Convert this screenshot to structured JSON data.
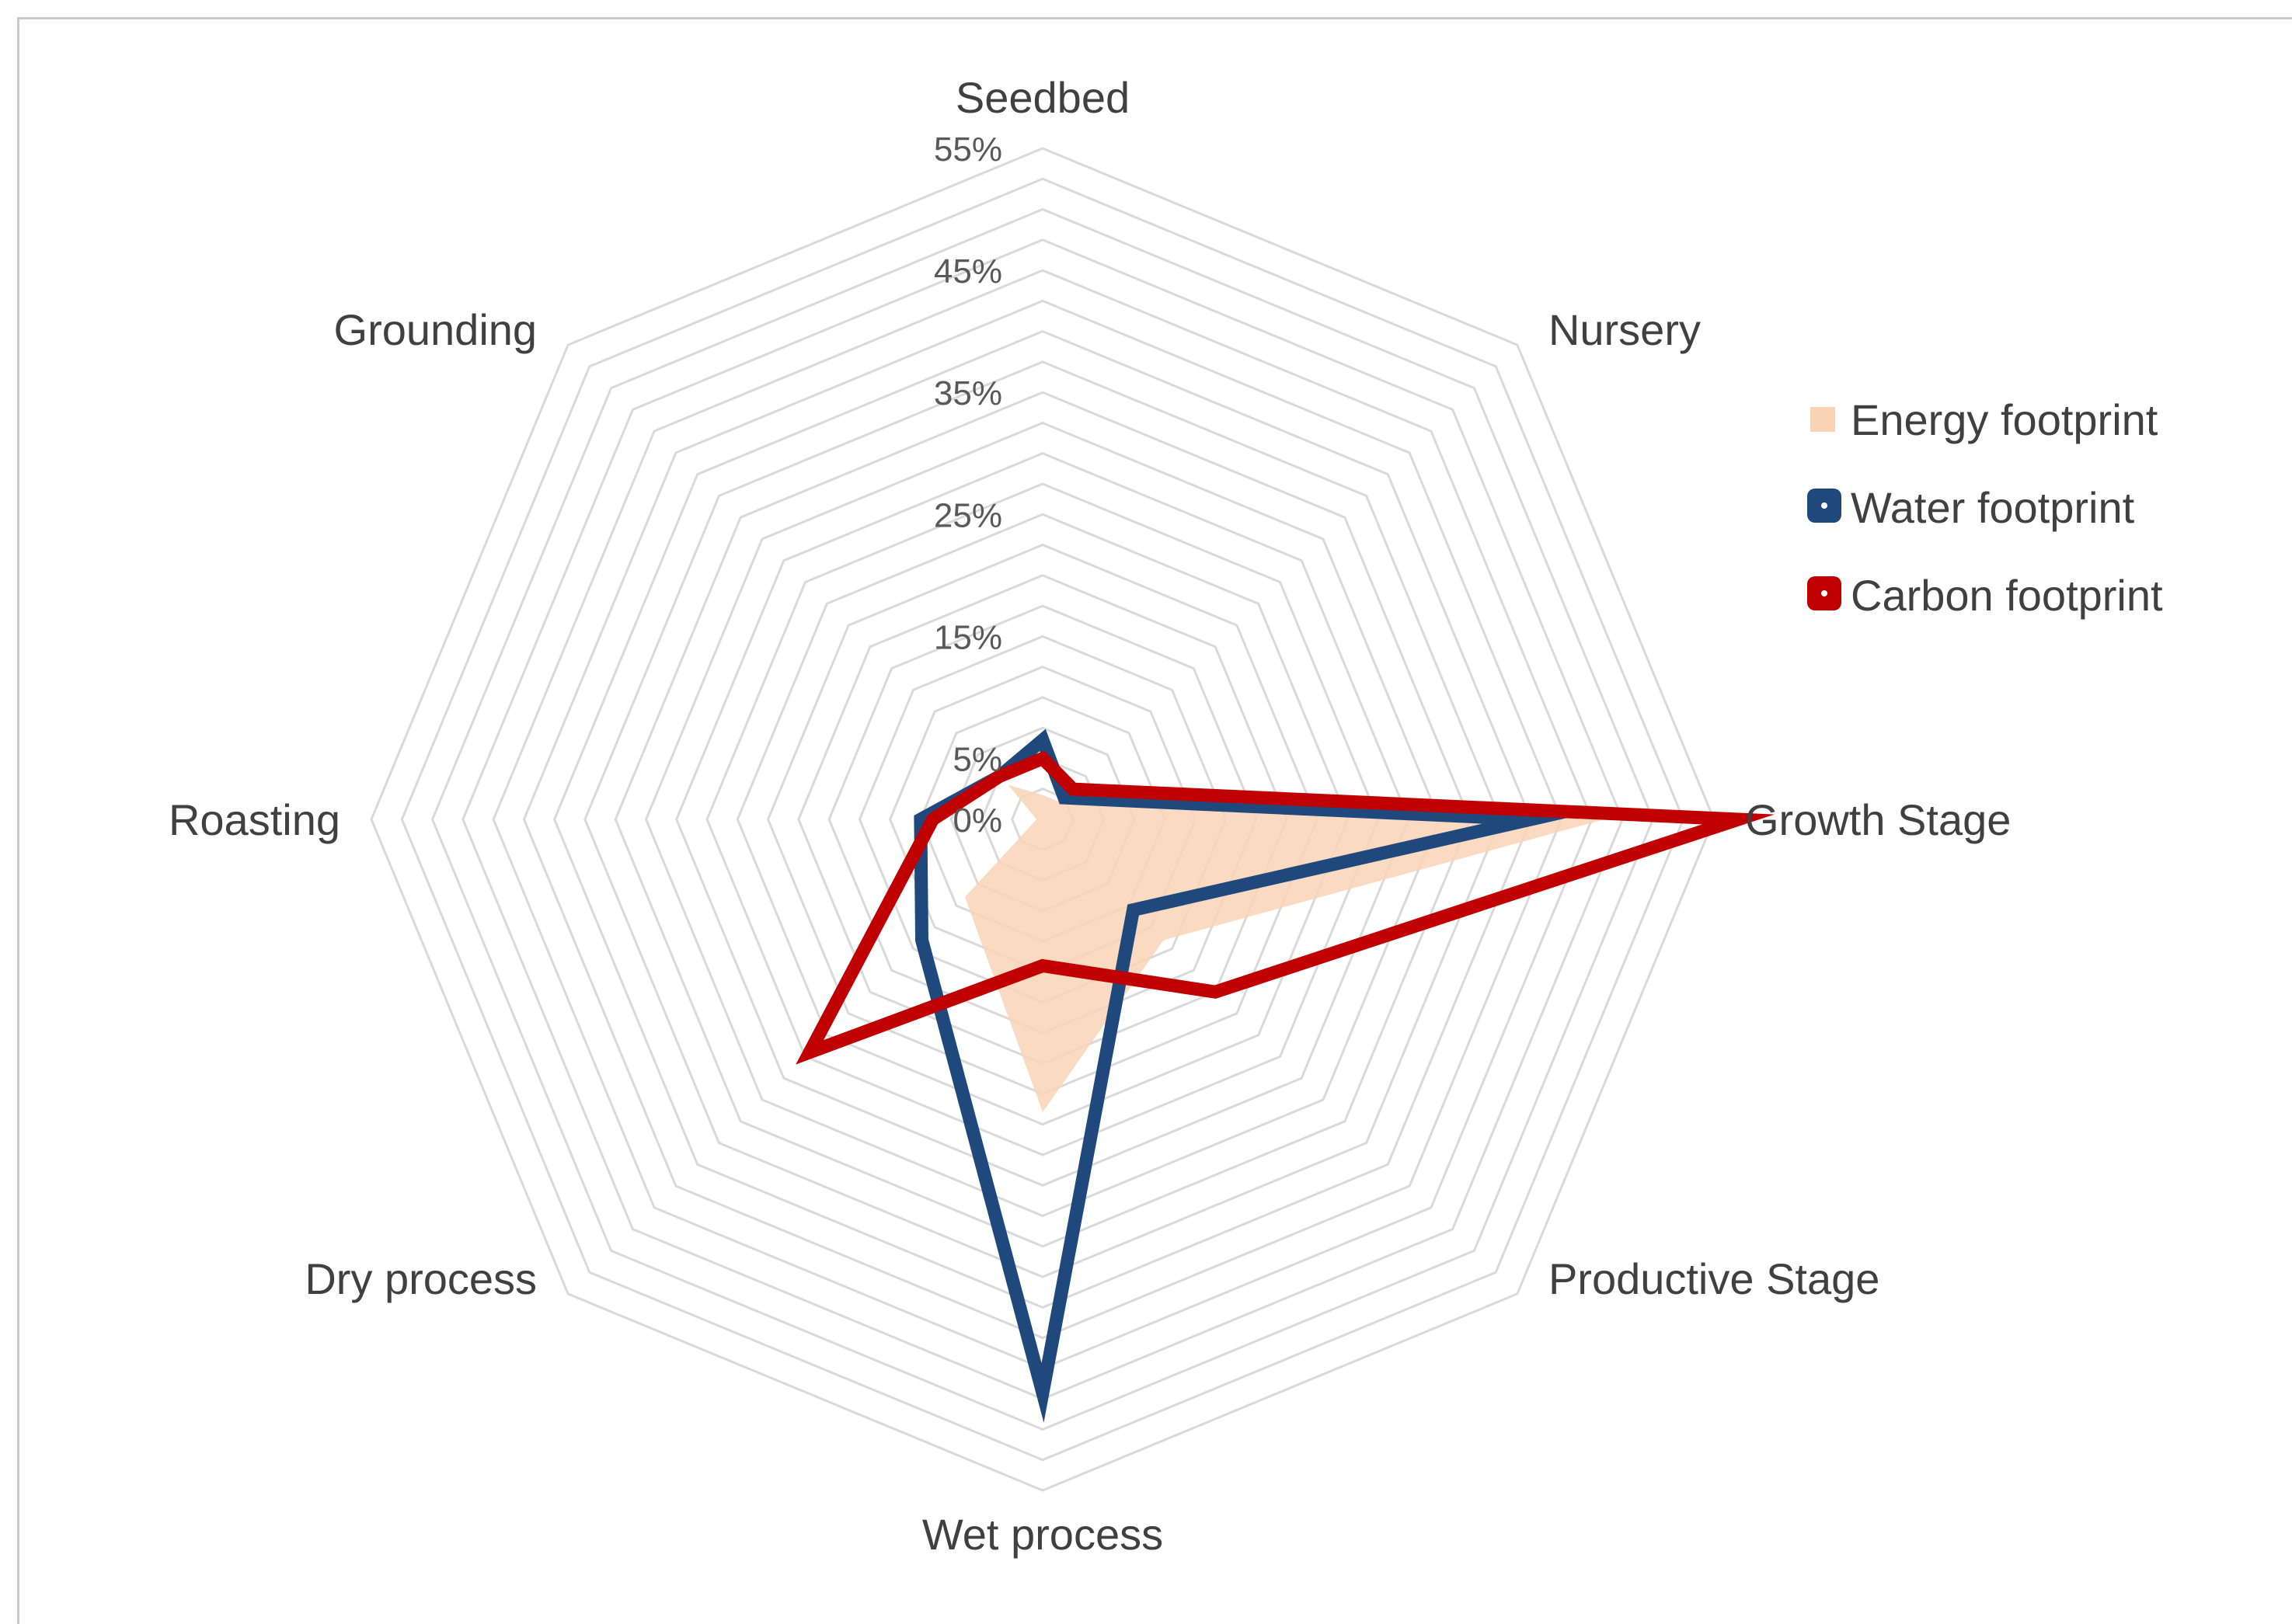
{
  "chart_data": {
    "type": "radar",
    "title": "",
    "axes": [
      "Seedbed",
      "Nursery",
      "Growth Stage",
      "Productive Stage",
      "Wet process",
      "Dry process",
      "Roasting",
      "Grounding"
    ],
    "rlim": [
      0,
      55
    ],
    "gridline_step": 2.5,
    "tick_values": [
      0,
      5,
      15,
      25,
      35,
      45,
      55
    ],
    "tick_labels": [
      "0%",
      "5%",
      "15%",
      "25%",
      "35%",
      "45%",
      "55%"
    ],
    "legend_position": "right",
    "series": [
      {
        "name": "Energy footprint",
        "style": "area",
        "color": "#f9d3b5",
        "values": [
          2.0,
          2.0,
          46.0,
          14.0,
          24.0,
          9.0,
          0.5,
          4.0
        ]
      },
      {
        "name": "Water footprint",
        "style": "line",
        "color": "#1f497d",
        "values": [
          6.5,
          2.5,
          40.0,
          10.5,
          47.0,
          14.0,
          10.0,
          5.0
        ]
      },
      {
        "name": "Carbon footprint",
        "style": "line",
        "color": "#c00000",
        "values": [
          5.0,
          3.5,
          57.0,
          20.0,
          12.0,
          27.0,
          9.0,
          5.0
        ]
      }
    ]
  }
}
